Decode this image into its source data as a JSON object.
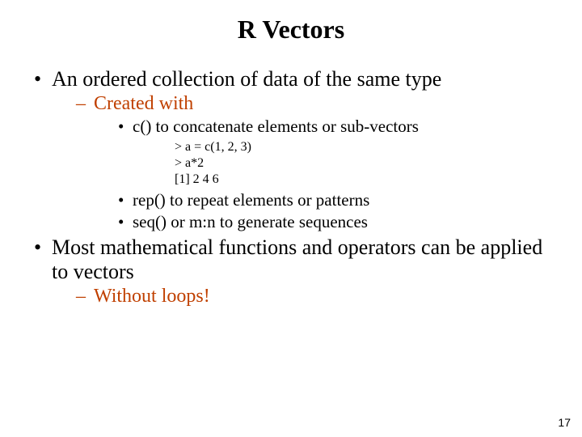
{
  "title": "R Vectors",
  "colors": {
    "text_black": "#000000",
    "accent_orange": "#c04000",
    "background": "#ffffff"
  },
  "bullets": {
    "l1_a": "An ordered collection of data of the same type",
    "l2_a": "Created with",
    "l3_a": "c() to concatenate elements or sub-vectors",
    "code1": "> a = c(1, 2, 3)",
    "code2": "> a*2",
    "code3": "[1]  2 4 6",
    "l3_b": "rep() to repeat elements or patterns",
    "l3_c": "seq() or m:n to generate sequences",
    "l1_b": "Most mathematical functions and operators can be applied to vectors",
    "l2_b": "Without loops!"
  },
  "page_number": "17"
}
